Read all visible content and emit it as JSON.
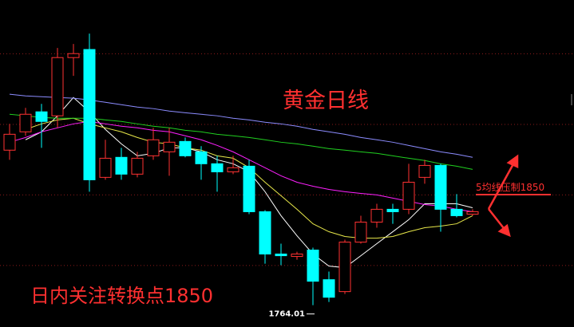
{
  "chart_data": {
    "type": "candlestick",
    "title": "黄金日线",
    "annotations": [
      "5均线压制1850",
      "日内关注转换点1850"
    ],
    "ylim": [
      1747,
      2002
    ],
    "hlines": [
      1960,
      1905,
      1850,
      1795
    ],
    "up_color": "#ff3232",
    "down_color": "#00ffff",
    "open": [
      1884.9,
      1899.2,
      1914.8,
      1911.7,
      1957.1,
      1963.4,
      1863.7,
      1879.3,
      1866.2,
      1880.5,
      1883.6,
      1891.7,
      1883.6,
      1874.3,
      1868.0,
      1872.4,
      1836.9,
      1803.9,
      1802.0,
      1807.0,
      1783.9,
      1774.6,
      1813.2,
      1828.8,
      1838.8,
      1838.8,
      1863.7,
      1873.0,
      1838.8,
      1835.0
    ],
    "high": [
      1905.4,
      1917.9,
      1921.0,
      1964.6,
      1967.7,
      1975.8,
      1893.0,
      1886.7,
      1883.6,
      1902.3,
      1902.3,
      1894.8,
      1888.0,
      1880.5,
      1880.5,
      1877.4,
      1838.1,
      1812.0,
      1805.7,
      1808.9,
      1790.2,
      1815.1,
      1833.8,
      1843.1,
      1843.1,
      1874.3,
      1877.4,
      1874.3,
      1850.6,
      1838.8
    ],
    "low": [
      1877.4,
      1896.1,
      1886.7,
      1902.3,
      1942.8,
      1852.5,
      1861.8,
      1861.8,
      1863.7,
      1877.4,
      1864.9,
      1879.3,
      1861.8,
      1852.5,
      1866.2,
      1835.0,
      1796.4,
      1795.2,
      1799.5,
      1764.01,
      1766.5,
      1772.7,
      1812.0,
      1824.4,
      1827.5,
      1835.0,
      1858.7,
      1821.3,
      1832.5,
      1833.8
    ],
    "close": [
      1897.3,
      1912.9,
      1907.3,
      1957.1,
      1960.2,
      1861.8,
      1878.6,
      1866.2,
      1878.6,
      1893.0,
      1891.1,
      1880.5,
      1874.3,
      1868.0,
      1871.2,
      1836.9,
      1803.9,
      1802.6,
      1803.9,
      1782.7,
      1770.2,
      1813.2,
      1828.8,
      1838.8,
      1836.9,
      1859.9,
      1873.0,
      1838.8,
      1833.8,
      1836.9
    ],
    "series": [
      {
        "color": "#ffffff",
        "values": [
          null,
          1893.0,
          1899.2,
          1911.7,
          1926.0,
          1914.8,
          1901.1,
          1889.8,
          1880.5,
          1882.4,
          1886.7,
          1886.7,
          1883.6,
          1877.4,
          1874.3,
          1868.0,
          1852.5,
          1833.8,
          1818.2,
          1803.9,
          1794.5,
          1793.3,
          1802.6,
          1812.0,
          1821.3,
          1830.7,
          1843.1,
          1843.1,
          1843.1,
          1840.0
        ]
      },
      {
        "color": "#e8e84a",
        "values": [
          null,
          1901.1,
          1905.4,
          1908.5,
          1909.8,
          1905.4,
          1902.3,
          1899.2,
          1894.8,
          1891.1,
          1889.8,
          1886.7,
          1884.9,
          1880.5,
          1878.6,
          1871.2,
          1859.9,
          1849.4,
          1838.8,
          1827.5,
          1821.3,
          1817.6,
          1816.3,
          1816.3,
          1817.6,
          1821.3,
          1824.4,
          1825.7,
          1827.5,
          1833.8
        ]
      },
      {
        "color": "#ff20ff",
        "values": [
          1891.1,
          1894.8,
          1899.2,
          1902.3,
          1905.4,
          1907.3,
          1905.4,
          1903.6,
          1902.3,
          1900.4,
          1899.2,
          1896.1,
          1893.0,
          1888.6,
          1883.6,
          1877.4,
          1871.2,
          1864.9,
          1859.9,
          1856.8,
          1854.3,
          1852.5,
          1851.2,
          1850.0,
          1847.5,
          1845.0,
          1842.5,
          1841.3,
          1838.8,
          1836.9
        ]
      },
      {
        "color": "#20d020",
        "values": [
          1912.9,
          1911.7,
          1910.4,
          1909.8,
          1909.8,
          1909.8,
          1908.5,
          1907.3,
          1905.4,
          1903.6,
          1902.3,
          1900.4,
          1899.2,
          1897.3,
          1896.1,
          1894.8,
          1893.0,
          1891.1,
          1889.8,
          1888.0,
          1886.1,
          1884.9,
          1883.6,
          1882.4,
          1880.5,
          1878.6,
          1876.8,
          1874.3,
          1872.4,
          1869.9
        ]
      },
      {
        "color": "#8c8cff",
        "values": [
          1928.5,
          1927.2,
          1926.6,
          1926.0,
          1925.4,
          1924.1,
          1922.2,
          1920.4,
          1918.5,
          1917.3,
          1915.4,
          1914.1,
          1912.9,
          1911.7,
          1909.8,
          1908.5,
          1906.7,
          1905.4,
          1903.6,
          1901.1,
          1899.2,
          1897.3,
          1894.8,
          1893.0,
          1891.1,
          1888.6,
          1886.1,
          1883.6,
          1881.7,
          1879.3
        ]
      }
    ]
  }
}
